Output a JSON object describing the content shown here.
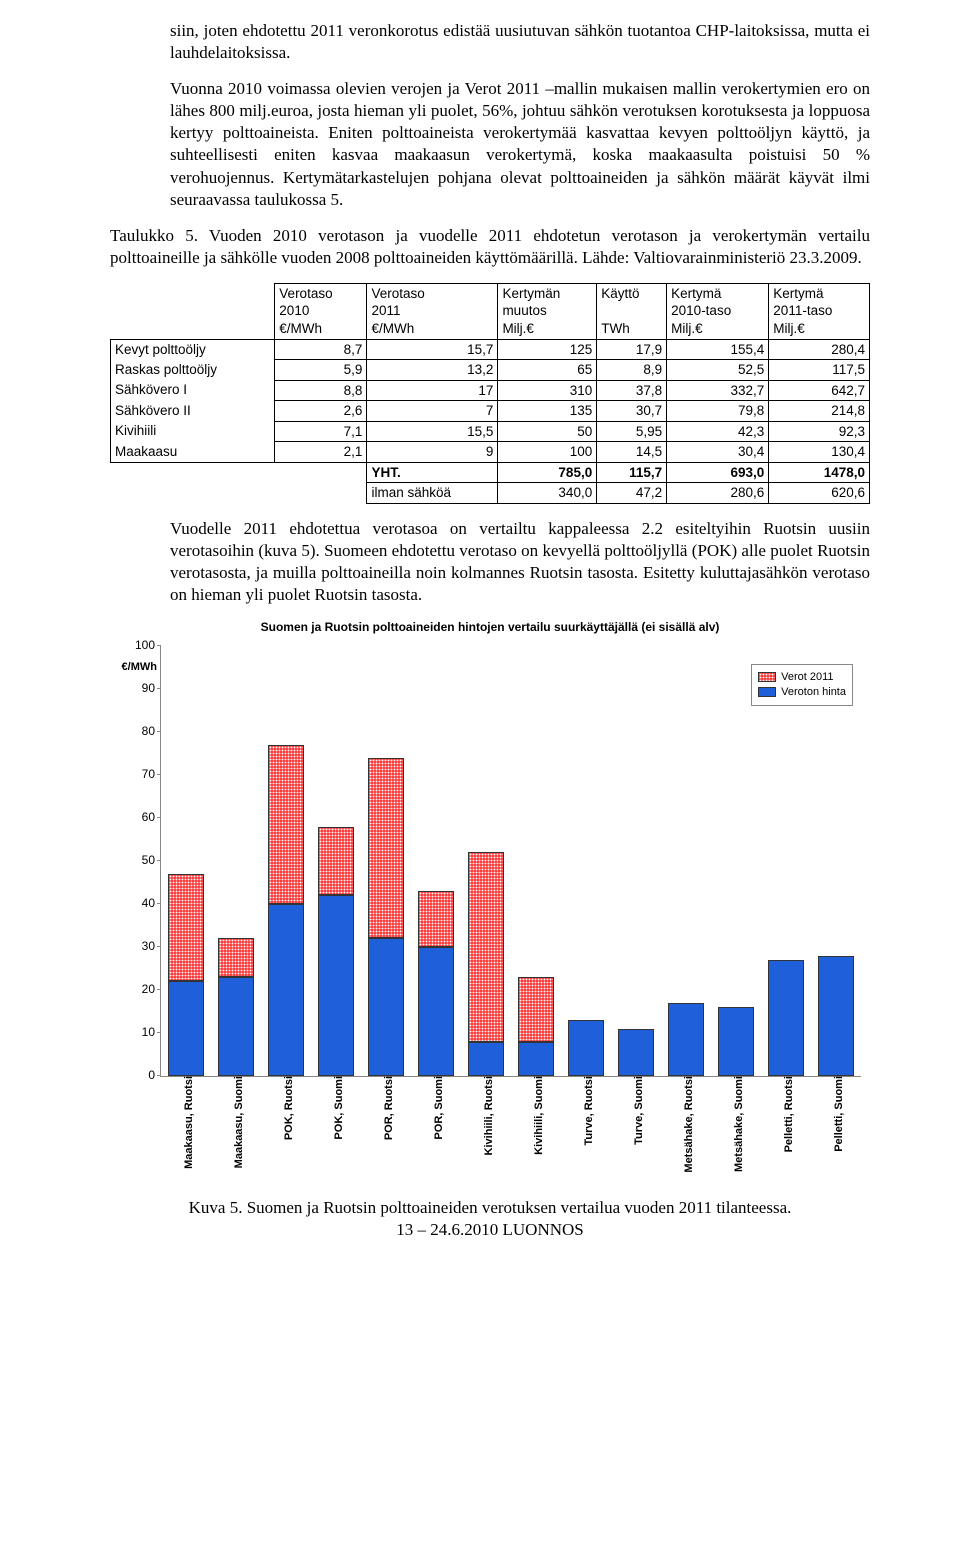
{
  "paragraphs": {
    "p1": "siin, joten ehdotettu 2011 veronkorotus edistää uusiutuvan sähkön tuotantoa CHP-laitoksissa, mutta ei lauhdelaitoksissa.",
    "p2": "Vuonna 2010 voimassa olevien verojen ja Verot 2011 –mallin mukaisen mallin verokertymien ero on lähes 800 milj.euroa, josta hieman yli puolet, 56%, johtuu sähkön verotuksen korotuksesta ja loppuosa kertyy polttoaineista. Eniten polttoaineista verokertymää kasvattaa kevyen polttoöljyn käyttö, ja suhteellisesti eniten kasvaa maakaasun verokertymä, koska maakaasulta poistuisi 50 % verohuojennus. Kertymätarkastelujen pohjana olevat polttoaineiden ja sähkön määrät käyvät ilmi seuraavassa taulukossa 5.",
    "table_caption": "Taulukko 5. Vuoden 2010 verotason ja vuodelle 2011 ehdotetun verotason ja verokertymän vertailu polttoaineille ja sähkölle vuoden 2008  polttoaineiden käyttömäärillä. Lähde: Valtiovarainministeriö 23.3.2009.",
    "p3": "Vuodelle 2011 ehdotettua verotasoa on vertailtu kappaleessa 2.2 esiteltyihin Ruotsin uusiin verotasoihin (kuva 5). Suomeen ehdotettu verotaso on kevyellä polttoöljyllä (POK) alle puolet Ruotsin verotasosta, ja muilla polttoaineilla noin kolmannes Ruotsin tasosta. Esitetty kuluttajasähkön verotaso on hieman yli puolet Ruotsin tasosta."
  },
  "table5": {
    "headers": [
      "",
      "Verotaso\n2010\n€/MWh",
      "Verotaso\n2011\n€/MWh",
      "Kertymän\nmuutos\nMilj.€",
      "Käyttö\n\nTWh",
      "Kertymä\n2010-taso\nMilj.€",
      "Kertymä\n2011-taso\nMilj.€"
    ],
    "rows": [
      [
        "Kevyt polttoöljy",
        "8,7",
        "15,7",
        "125",
        "17,9",
        "155,4",
        "280,4"
      ],
      [
        "Raskas polttoöljy",
        "5,9",
        "13,2",
        "65",
        "8,9",
        "52,5",
        "117,5"
      ],
      [
        "Sähkövero I",
        "8,8",
        "17",
        "310",
        "37,8",
        "332,7",
        "642,7"
      ],
      [
        "Sähkövero II",
        "2,6",
        "7",
        "135",
        "30,7",
        "79,8",
        "214,8"
      ],
      [
        "Kivihiili",
        "7,1",
        "15,5",
        "50",
        "5,95",
        "42,3",
        "92,3"
      ],
      [
        "Maakaasu",
        "2,1",
        "9",
        "100",
        "14,5",
        "30,4",
        "130,4"
      ]
    ],
    "summary": [
      [
        "YHT.",
        "785,0",
        "115,7",
        "693,0",
        "1478,0"
      ],
      [
        "ilman sähköä",
        "340,0",
        "47,2",
        "280,6",
        "620,6"
      ]
    ]
  },
  "chart": {
    "title": "Suomen ja Ruotsin polttoaineiden hintojen vertailu suurkäyttäjällä (ei sisällä alv)",
    "y_unit": "€/MWh",
    "y_max": 100,
    "y_ticks": [
      0,
      10,
      20,
      30,
      40,
      50,
      60,
      70,
      80,
      90,
      100
    ],
    "legend": [
      {
        "label": "Verot 2011",
        "color": "#ff0000",
        "pattern": "hatch"
      },
      {
        "label": "Veroton hinta",
        "color": "#1f5fd9",
        "pattern": "solid"
      }
    ],
    "colors": {
      "base": "#1f5fd9",
      "tax": "#ff0000",
      "border": "#333333",
      "hatch_bg": "#ffffff"
    },
    "categories": [
      {
        "label": "Maakaasu, Ruotsi",
        "base": 22,
        "tax": 25
      },
      {
        "label": "Maakaasu, Suomi",
        "base": 23,
        "tax": 9
      },
      {
        "label": "POK, Ruotsi",
        "base": 40,
        "tax": 37
      },
      {
        "label": "POK, Suomi",
        "base": 42,
        "tax": 16
      },
      {
        "label": "POR, Ruotsi",
        "base": 32,
        "tax": 42
      },
      {
        "label": "POR, Suomi",
        "base": 30,
        "tax": 13
      },
      {
        "label": "Kivihiili, Ruotsi",
        "base": 8,
        "tax": 44
      },
      {
        "label": "Kivihiili, Suomi",
        "base": 8,
        "tax": 15
      },
      {
        "label": "Turve, Ruotsi",
        "base": 13,
        "tax": 0
      },
      {
        "label": "Turve, Suomi",
        "base": 11,
        "tax": 0
      },
      {
        "label": "Metsähake, Ruotsi",
        "base": 17,
        "tax": 0
      },
      {
        "label": "Metsähake, Suomi",
        "base": 16,
        "tax": 0
      },
      {
        "label": "Pelletti, Ruotsi",
        "base": 27,
        "tax": 0
      },
      {
        "label": "Pelletti, Suomi",
        "base": 28,
        "tax": 0
      }
    ]
  },
  "figure_caption": "Kuva 5. Suomen ja Ruotsin polttoaineiden verotuksen vertailua vuoden 2011 tilanteessa.",
  "footer": "13 – 24.6.2010 LUONNOS"
}
